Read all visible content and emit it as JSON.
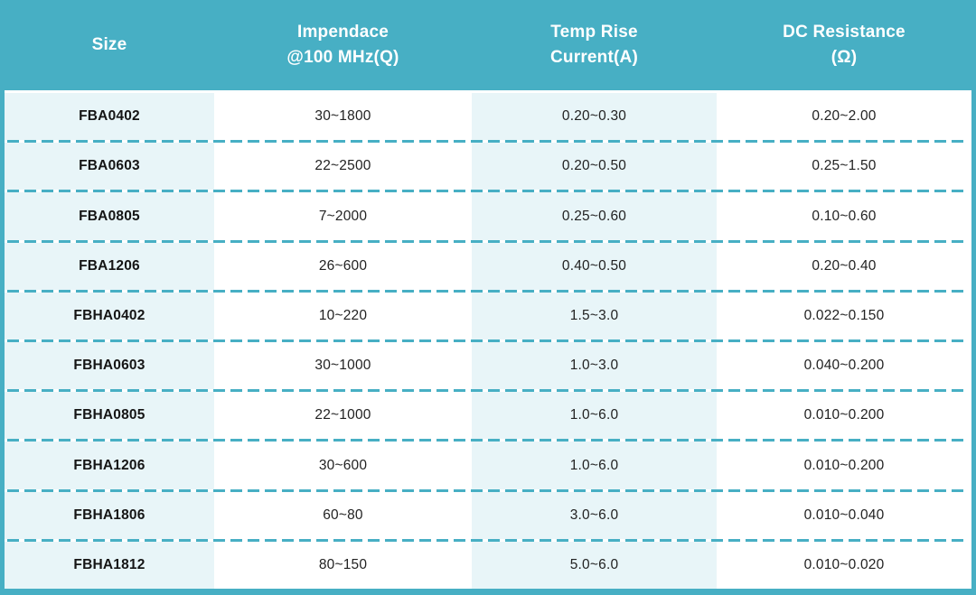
{
  "table": {
    "columns": [
      {
        "id": "size",
        "label": "Size"
      },
      {
        "id": "impedance",
        "label": "Impendace\n@100 MHz(Q)"
      },
      {
        "id": "temp_rise",
        "label": "Temp Rise\nCurrent(A)"
      },
      {
        "id": "dc_resistance",
        "label": "DC Resistance\n(Ω)"
      }
    ],
    "rows": [
      {
        "size": "FBA0402",
        "impedance": "30~1800",
        "temp_rise": "0.20~0.30",
        "dc_resistance": "0.20~2.00"
      },
      {
        "size": "FBA0603",
        "impedance": "22~2500",
        "temp_rise": "0.20~0.50",
        "dc_resistance": "0.25~1.50"
      },
      {
        "size": "FBA0805",
        "impedance": "7~2000",
        "temp_rise": "0.25~0.60",
        "dc_resistance": "0.10~0.60"
      },
      {
        "size": "FBA1206",
        "impedance": "26~600",
        "temp_rise": "0.40~0.50",
        "dc_resistance": "0.20~0.40"
      },
      {
        "size": "FBHA0402",
        "impedance": "10~220",
        "temp_rise": "1.5~3.0",
        "dc_resistance": "0.022~0.150"
      },
      {
        "size": "FBHA0603",
        "impedance": "30~1000",
        "temp_rise": "1.0~3.0",
        "dc_resistance": "0.040~0.200"
      },
      {
        "size": "FBHA0805",
        "impedance": "22~1000",
        "temp_rise": "1.0~6.0",
        "dc_resistance": "0.010~0.200"
      },
      {
        "size": "FBHA1206",
        "impedance": "30~600",
        "temp_rise": "1.0~6.0",
        "dc_resistance": "0.010~0.200"
      },
      {
        "size": "FBHA1806",
        "impedance": "60~80",
        "temp_rise": "3.0~6.0",
        "dc_resistance": "0.010~0.040"
      },
      {
        "size": "FBHA1812",
        "impedance": "80~150",
        "temp_rise": "5.0~6.0",
        "dc_resistance": "0.010~0.020"
      }
    ]
  },
  "colors": {
    "accent_teal": "#47AFC4",
    "alt_column_bg": "#E8F5F8",
    "header_text": "#FFFFFF",
    "body_text": "#222222"
  }
}
